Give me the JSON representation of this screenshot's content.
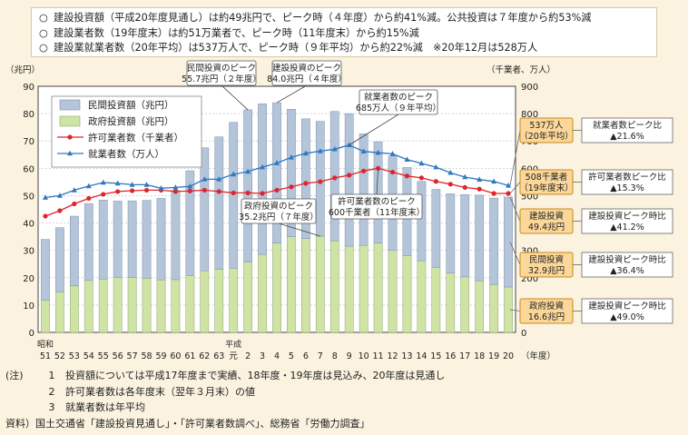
{
  "summary": [
    "建設投資額（平成20年度見通し）は約49兆円で、ピーク時（４年度）から約41%減。公共投資は７年度から約53%減",
    "建設業者数（19年度末）は約51万業者で、ピーク時（11年度末）から約15%減",
    "建設業就業者数（20年平均）は537万人で、ピーク時（９年平均）から約22%減　※20年12月は528万人"
  ],
  "summary_bullet": "○",
  "notes": {
    "prefix": "(注)",
    "items": [
      {
        "num": "1",
        "text": "投資額については平成17年度まで実績、18年度・19年度は見込み、20年度は見通し"
      },
      {
        "num": "2",
        "text": "許可業者数は各年度末（翌年３月末）の値"
      },
      {
        "num": "3",
        "text": "就業者数は年平均"
      }
    ],
    "source": "資料）国土交通省「建設投資見通し」・「許可業者数調べ」、総務省「労働力調査」"
  },
  "chart_data": {
    "type": "bar",
    "left_axis_unit": "（兆円）",
    "right_axis_unit": "（千業者、万人）",
    "x_axis_unit": "（年度）",
    "era_labels": {
      "showa": "昭和",
      "heisei": "平成"
    },
    "categories": [
      "51",
      "52",
      "53",
      "54",
      "55",
      "56",
      "57",
      "58",
      "59",
      "60",
      "61",
      "62",
      "63",
      "元",
      "2",
      "3",
      "4",
      "5",
      "6",
      "7",
      "8",
      "9",
      "10",
      "11",
      "12",
      "13",
      "14",
      "15",
      "16",
      "17",
      "18",
      "19",
      "20"
    ],
    "left_ticks": [
      0,
      10,
      20,
      30,
      40,
      50,
      60,
      70,
      80,
      90
    ],
    "right_ticks": [
      0,
      100,
      200,
      300,
      400,
      500,
      600,
      700,
      800,
      900
    ],
    "ylim_left": [
      0,
      90
    ],
    "ylim_right": [
      0,
      900
    ],
    "colors": {
      "private": "#b4c4d9",
      "government": "#cfe3a5",
      "licensed": "#e0242b",
      "employed": "#2e78c2",
      "callout_fill": "#fbd79a",
      "callout_border": "#c78a1e"
    },
    "series": [
      {
        "name": "民間投資額（兆円）",
        "kind": "stack_top",
        "axis": "left",
        "values": [
          22.2,
          23.5,
          25.5,
          28.1,
          28.9,
          28.0,
          28.0,
          28.5,
          29.8,
          32.6,
          38.3,
          45.0,
          48.5,
          53.3,
          55.7,
          55.1,
          51.3,
          46.6,
          43.8,
          42.0,
          47.3,
          48.5,
          40.8,
          37.0,
          34.5,
          32.3,
          29.0,
          28.5,
          29.0,
          30.1,
          31.3,
          31.6,
          32.9
        ]
      },
      {
        "name": "政府投資額（兆円）",
        "kind": "stack_base",
        "axis": "left",
        "values": [
          11.8,
          14.8,
          17.0,
          19.0,
          19.5,
          20.0,
          20.1,
          19.8,
          19.2,
          19.3,
          20.8,
          22.5,
          23.0,
          23.5,
          25.7,
          28.5,
          32.7,
          35.0,
          34.3,
          35.2,
          33.5,
          31.5,
          31.8,
          32.7,
          30.0,
          28.0,
          26.2,
          23.8,
          21.7,
          20.3,
          18.9,
          17.5,
          16.6
        ]
      },
      {
        "name": "許可業者数（千業者）",
        "kind": "line",
        "marker": "circle",
        "axis": "right",
        "values": [
          425,
          445,
          470,
          490,
          505,
          515,
          518,
          520,
          520,
          515,
          517,
          520,
          515,
          510,
          510,
          508,
          520,
          532,
          545,
          551,
          565,
          575,
          590,
          600,
          586,
          572,
          565,
          552,
          542,
          530,
          524,
          508,
          508
        ]
      },
      {
        "name": "就業者数（万人）",
        "kind": "line",
        "marker": "triangle",
        "axis": "right",
        "values": [
          493,
          500,
          520,
          535,
          548,
          545,
          540,
          540,
          527,
          530,
          534,
          560,
          560,
          578,
          588,
          604,
          619,
          640,
          655,
          663,
          670,
          685,
          662,
          657,
          653,
          632,
          618,
          604,
          584,
          568,
          559,
          552,
          537
        ]
      }
    ],
    "legend": [
      "民間投資額（兆円）",
      "政府投資額（兆円）",
      "許可業者数（千業者）",
      "就業者数（万人）"
    ],
    "peak_annotations": [
      {
        "lines": [
          "民間投資のピーク",
          "55.7兆円（２年度）"
        ]
      },
      {
        "lines": [
          "建設投資のピーク",
          "84.0兆円（４年度）"
        ]
      },
      {
        "lines": [
          "就業者数のピーク",
          "685万人（９年平均）"
        ]
      },
      {
        "lines": [
          "政府投資のピーク",
          "35.2兆円（７年度）"
        ]
      },
      {
        "lines": [
          "許可業者数のピーク",
          "600千業者（11年度末）"
        ]
      }
    ],
    "right_callouts": [
      {
        "label": [
          "537万人",
          "（20年平均）"
        ],
        "comparison": [
          "就業者数ピーク比",
          "▲21.6%"
        ]
      },
      {
        "label": [
          "508千業者",
          "（19年度末）"
        ],
        "comparison": [
          "許可業者数ピーク比",
          "▲15.3%"
        ]
      },
      {
        "label": [
          "建設投資",
          "49.4兆円"
        ],
        "comparison": [
          "建設投資ピーク時比",
          "▲41.2%"
        ]
      },
      {
        "label": [
          "民間投資",
          "32.9兆円"
        ],
        "comparison": [
          "建設投資ピーク時比",
          "▲36.4%"
        ]
      },
      {
        "label": [
          "政府投資",
          "16.6兆円"
        ],
        "comparison": [
          "建設投資ピーク時比",
          "▲49.0%"
        ]
      }
    ]
  }
}
